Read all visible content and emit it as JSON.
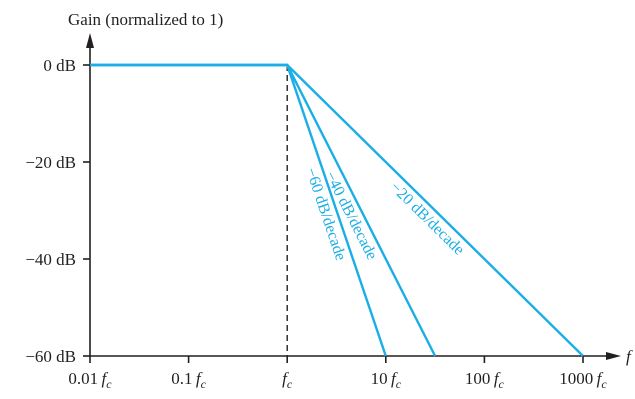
{
  "colors": {
    "axis": "#231f20",
    "line": "#1aaee5"
  },
  "chart_data": {
    "type": "line",
    "title": "",
    "ylabel": "Gain (normalized to 1)",
    "xlabel": "f",
    "xscale": "log",
    "x_ticks": [
      {
        "value": 0.01,
        "num": "0.01",
        "sym": "f",
        "sub": "c"
      },
      {
        "value": 0.1,
        "num": "0.1",
        "sym": "f",
        "sub": "c"
      },
      {
        "value": 1,
        "num": "",
        "sym": "f",
        "sub": "c"
      },
      {
        "value": 10,
        "num": "10",
        "sym": "f",
        "sub": "c"
      },
      {
        "value": 100,
        "num": "100",
        "sym": "f",
        "sub": "c"
      },
      {
        "value": 1000,
        "num": "1000",
        "sym": "f",
        "sub": "c"
      }
    ],
    "y_ticks": [
      {
        "value": 0,
        "label": "0 dB"
      },
      {
        "value": -20,
        "label": "−20 dB"
      },
      {
        "value": -40,
        "label": "−40 dB"
      },
      {
        "value": -60,
        "label": "−60 dB"
      }
    ],
    "ylim": [
      -60,
      0
    ],
    "cutoff_x": 1,
    "series": [
      {
        "name": "−20 dB/decade",
        "x": [
          0.01,
          1,
          1000
        ],
        "y": [
          0,
          0,
          -60
        ]
      },
      {
        "name": "−40 dB/decade",
        "x": [
          0.01,
          1,
          31.6
        ],
        "y": [
          0,
          0,
          -60
        ]
      },
      {
        "name": "−60 dB/decade",
        "x": [
          0.01,
          1,
          10
        ],
        "y": [
          0,
          0,
          -60
        ]
      }
    ]
  }
}
